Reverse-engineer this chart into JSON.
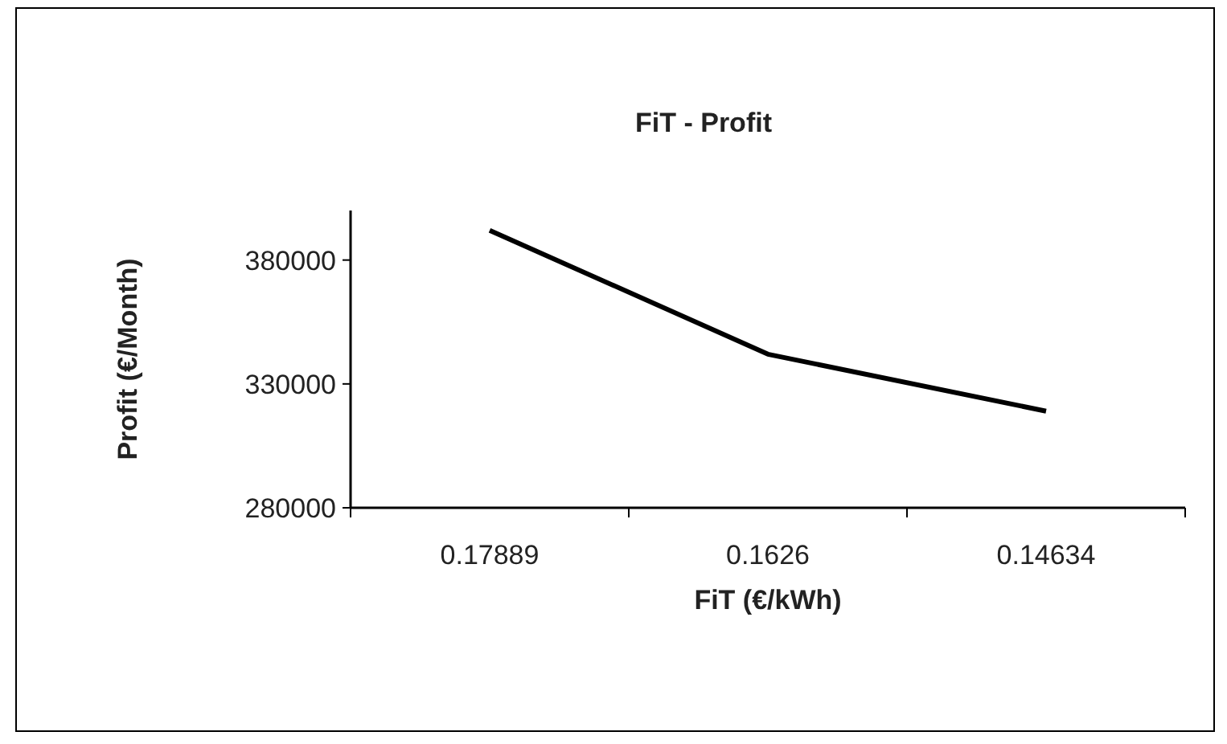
{
  "chart_data": {
    "type": "line",
    "title": "FiT - Profit",
    "xlabel": "FiT (€/kWh)",
    "ylabel": "Profit (€/Month)",
    "categories": [
      "0.17889",
      "0.1626",
      "0.14634"
    ],
    "series": [
      {
        "color": "#000000",
        "values": [
          392000,
          342000,
          319000
        ]
      }
    ],
    "ylim": [
      280000,
      400000
    ],
    "yticks": [
      280000,
      330000,
      380000
    ],
    "grid": false,
    "marker": "none",
    "line_style": "solid"
  }
}
